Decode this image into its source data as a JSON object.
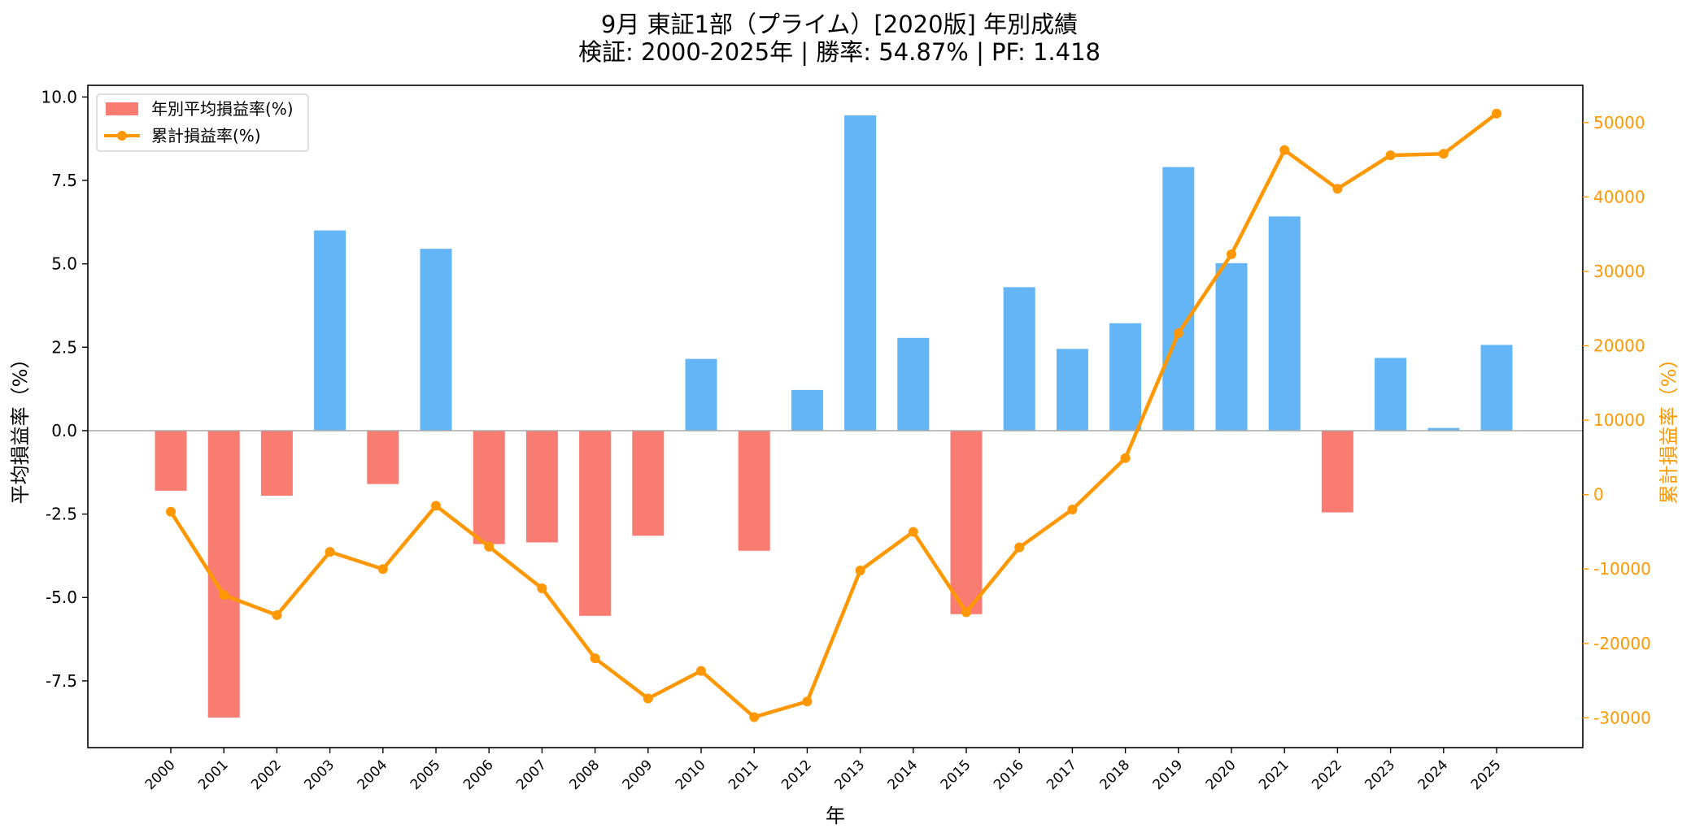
{
  "chart_data": {
    "type": "bar+line",
    "title": "9月 東証1部（プライム）[2020版] 年別成績",
    "subtitle": "検証: 2000-2025年 | 勝率: 54.87% | PF: 1.418",
    "xlabel": "年",
    "ylabel_left": "平均損益率（%）",
    "ylabel_right": "累計損益率（%）",
    "categories": [
      "2000",
      "2001",
      "2002",
      "2003",
      "2004",
      "2005",
      "2006",
      "2007",
      "2008",
      "2009",
      "2010",
      "2011",
      "2012",
      "2013",
      "2014",
      "2015",
      "2016",
      "2017",
      "2018",
      "2019",
      "2020",
      "2021",
      "2022",
      "2023",
      "2024",
      "2025"
    ],
    "ylim_left": [
      -9.5,
      10.35
    ],
    "yticks_left": [
      10.0,
      7.5,
      5.0,
      2.5,
      0.0,
      -2.5,
      -5.0,
      -7.5
    ],
    "ytick_labels_left": [
      "10.0",
      "7.5",
      "5.0",
      "2.5",
      "0.0",
      "-2.5",
      "-5.0",
      "-7.5"
    ],
    "ylim_right": [
      -34000,
      55000
    ],
    "yticks_right": [
      50000,
      40000,
      30000,
      20000,
      10000,
      0,
      -10000,
      -20000,
      -30000
    ],
    "ytick_labels_right": [
      "50000",
      "40000",
      "30000",
      "20000",
      "10000",
      "0",
      "-10000",
      "-20000",
      "-30000"
    ],
    "legend_position": "top-left",
    "series": [
      {
        "name": "年別平均損益率(%)",
        "kind": "bar",
        "axis": "left",
        "positive_color": "#64b5f6",
        "negative_color": "#f87c72",
        "values": [
          -1.8,
          -8.6,
          -1.95,
          6.0,
          -1.6,
          5.45,
          -3.4,
          -3.35,
          -5.55,
          -3.15,
          2.15,
          -3.6,
          1.22,
          9.45,
          2.78,
          -5.5,
          4.3,
          2.45,
          3.22,
          7.9,
          5.02,
          6.42,
          -2.45,
          2.18,
          0.08,
          2.57
        ]
      },
      {
        "name": "累計損益率(%)",
        "kind": "line",
        "axis": "right",
        "color": "#ff9800",
        "values": [
          -2300,
          -13500,
          -16200,
          -7700,
          -10000,
          -1500,
          -7000,
          -12600,
          -22000,
          -27400,
          -23700,
          -29900,
          -27800,
          -10200,
          -5000,
          -15800,
          -7100,
          -2000,
          4900,
          21700,
          32300,
          46300,
          41100,
          45600,
          45800,
          51200
        ]
      }
    ]
  }
}
